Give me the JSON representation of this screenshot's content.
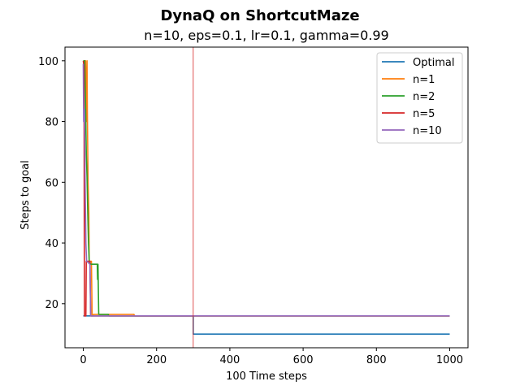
{
  "chart_data": {
    "type": "line",
    "suptitle": "DynaQ on ShortcutMaze",
    "title": "n=10, eps=0.1, lr=0.1, gamma=0.99",
    "xlabel": "100 Time steps",
    "ylabel": "Steps to goal",
    "xlim": [
      -50,
      1050
    ],
    "ylim": [
      5.5,
      104.5
    ],
    "xticks": [
      0,
      200,
      400,
      600,
      800,
      1000
    ],
    "yticks": [
      20,
      40,
      60,
      80,
      100
    ],
    "vline": {
      "x": 300,
      "color": "#d62728"
    },
    "legend_position": "top-right",
    "grid": false,
    "series": [
      {
        "name": "Optimal",
        "color": "#1f77b4",
        "points": [
          [
            0,
            16
          ],
          [
            300,
            16
          ],
          [
            300,
            10
          ],
          [
            1000,
            10
          ]
        ]
      },
      {
        "name": "n=1",
        "color": "#ff7f0e",
        "points": [
          [
            0,
            100
          ],
          [
            6,
            100
          ],
          [
            8,
            80
          ],
          [
            10,
            100
          ],
          [
            11,
            83
          ],
          [
            13,
            60
          ],
          [
            15,
            50
          ],
          [
            16,
            34
          ],
          [
            22,
            34
          ],
          [
            24,
            16
          ],
          [
            28,
            16.5
          ],
          [
            138,
            16.5
          ],
          [
            140,
            16
          ],
          [
            300,
            16
          ],
          [
            1000,
            16
          ]
        ]
      },
      {
        "name": "n=2",
        "color": "#2ca02c",
        "points": [
          [
            0,
            100
          ],
          [
            4,
            100
          ],
          [
            6,
            85
          ],
          [
            8,
            70
          ],
          [
            10,
            62
          ],
          [
            12,
            50
          ],
          [
            14,
            40
          ],
          [
            16,
            34
          ],
          [
            20,
            33
          ],
          [
            38,
            33
          ],
          [
            39,
            28
          ],
          [
            40,
            33
          ],
          [
            42,
            16.5
          ],
          [
            68,
            16.5
          ],
          [
            70,
            16
          ],
          [
            300,
            16
          ],
          [
            1000,
            16
          ]
        ]
      },
      {
        "name": "n=5",
        "color": "#d62728",
        "points": [
          [
            0,
            100
          ],
          [
            2,
            98
          ],
          [
            3,
            16
          ],
          [
            7,
            16
          ],
          [
            8,
            34
          ],
          [
            18,
            34
          ],
          [
            20,
            16
          ],
          [
            300,
            16
          ],
          [
            1000,
            16
          ]
        ]
      },
      {
        "name": "n=10",
        "color": "#9467bd",
        "points": [
          [
            0,
            99
          ],
          [
            1,
            80
          ],
          [
            3,
            84
          ],
          [
            5,
            60
          ],
          [
            7,
            40
          ],
          [
            9,
            34
          ],
          [
            18,
            33
          ],
          [
            20,
            16
          ],
          [
            300,
            16
          ],
          [
            1000,
            16
          ]
        ]
      }
    ]
  }
}
